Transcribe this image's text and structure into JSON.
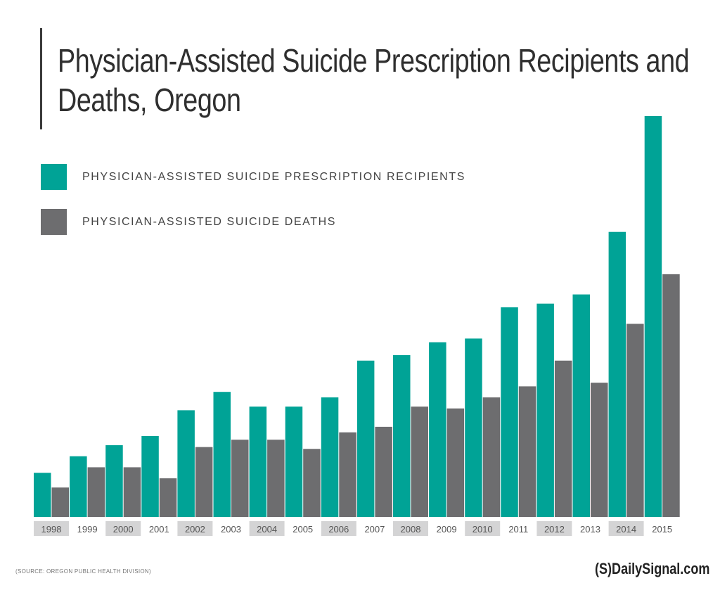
{
  "chart_data": {
    "type": "bar",
    "title": "Physician-Assisted Suicide Prescription Recipients and Deaths, Oregon",
    "categories": [
      "1998",
      "1999",
      "2000",
      "2001",
      "2002",
      "2003",
      "2004",
      "2005",
      "2006",
      "2007",
      "2008",
      "2009",
      "2010",
      "2011",
      "2012",
      "2013",
      "2014",
      "2015"
    ],
    "series": [
      {
        "name": "PHYSICIAN-ASSISTED SUICIDE PRESCRIPTION RECIPIENTS",
        "color": "#00a396",
        "values": [
          24,
          33,
          39,
          44,
          58,
          68,
          60,
          60,
          65,
          85,
          88,
          95,
          97,
          114,
          116,
          121,
          155,
          218
        ]
      },
      {
        "name": "PHYSICIAN-ASSISTED SUICIDE DEATHS",
        "color": "#6d6d6f",
        "values": [
          16,
          27,
          27,
          21,
          38,
          42,
          42,
          37,
          46,
          49,
          60,
          59,
          65,
          71,
          85,
          73,
          105,
          132
        ]
      }
    ],
    "ylim": [
      0,
      218
    ],
    "grid": false,
    "legend_position": "top-left",
    "xlabel": "",
    "ylabel": ""
  },
  "source": "(SOURCE: OREGON PUBLIC HEALTH DIVISION)",
  "logo": "(S)DailySignal.com"
}
